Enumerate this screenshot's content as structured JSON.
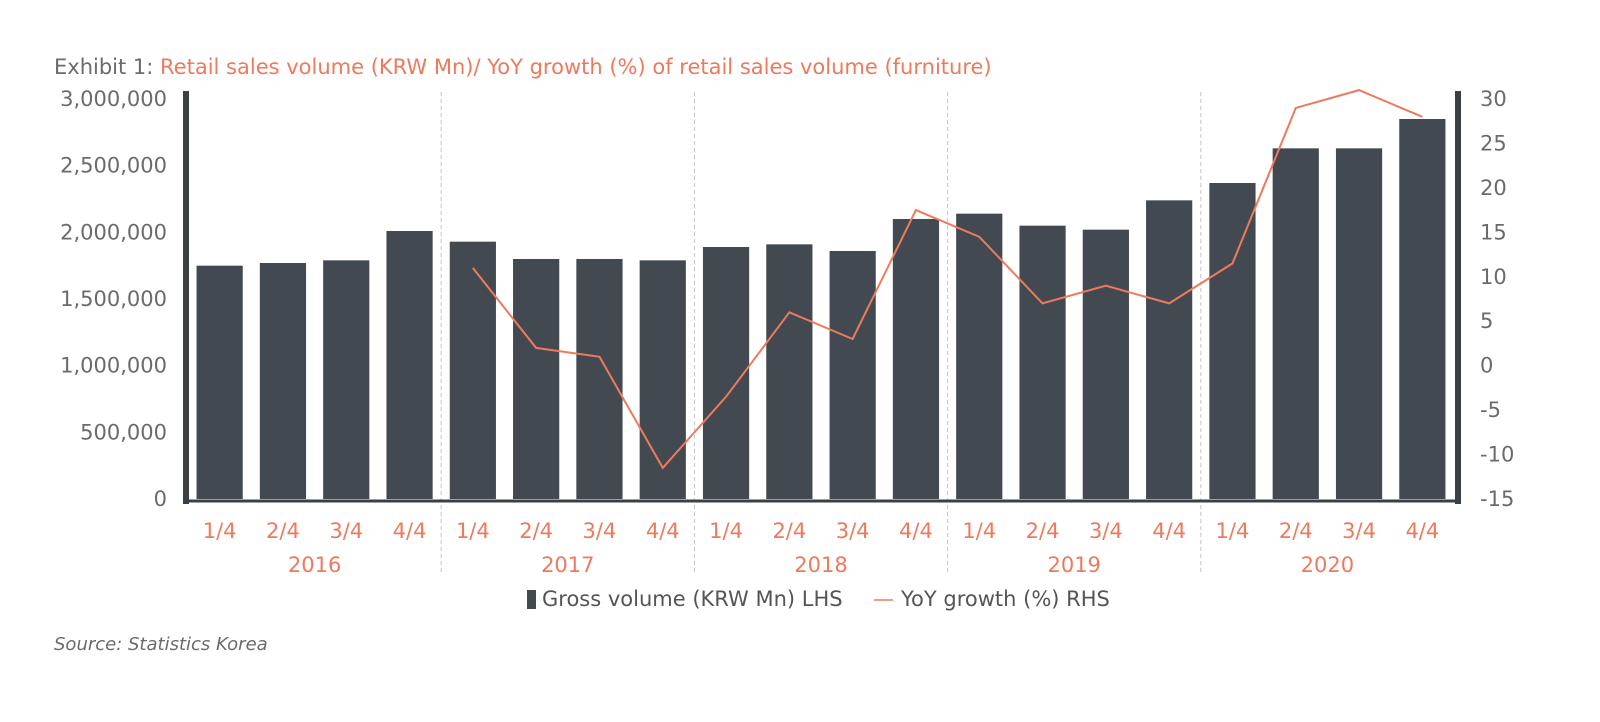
{
  "title": {
    "prefix": "Exhibit 1: ",
    "main": "Retail sales volume (KRW Mn)/ YoY growth (%) of retail sales volume (furniture)"
  },
  "source": "Source: Statistics Korea",
  "colors": {
    "bar": "#434950",
    "line": "#ee7a5d",
    "axis": "#3a4046",
    "prefix": "#6b6b6b",
    "accent_text": "#ee7a5d",
    "divider": "#c4c4c4"
  },
  "chart_data": {
    "type": "bar",
    "categories": [
      "1/4",
      "2/4",
      "3/4",
      "4/4",
      "1/4",
      "2/4",
      "3/4",
      "4/4",
      "1/4",
      "2/4",
      "3/4",
      "4/4",
      "1/4",
      "2/4",
      "3/4",
      "4/4",
      "1/4",
      "2/4",
      "3/4",
      "4/4"
    ],
    "groups": [
      {
        "label": "2016",
        "size": 4
      },
      {
        "label": "2017",
        "size": 4
      },
      {
        "label": "2018",
        "size": 4
      },
      {
        "label": "2019",
        "size": 4
      },
      {
        "label": "2020",
        "size": 4
      }
    ],
    "series": [
      {
        "name": "Gross volume (KRW Mn) LHS",
        "type": "bar",
        "axis": "left",
        "values": [
          1750000,
          1770000,
          1790000,
          2010000,
          1930000,
          1800000,
          1800000,
          1790000,
          1890000,
          1910000,
          1860000,
          2100000,
          2140000,
          2050000,
          2020000,
          2240000,
          2370000,
          2630000,
          2630000,
          2850000
        ]
      },
      {
        "name": "YoY growth (%) RHS",
        "type": "line",
        "axis": "right",
        "values": [
          null,
          null,
          null,
          null,
          11,
          2,
          1,
          -11.5,
          -3.5,
          6,
          3,
          17.5,
          14.5,
          7,
          9,
          7,
          11.5,
          29,
          31,
          28
        ]
      }
    ],
    "y_left": {
      "min": 0,
      "max": 3000000,
      "ticks": [
        "0",
        "500,000",
        "1,000,000",
        "1,500,000",
        "2,000,000",
        "2,500,000",
        "3,000,000"
      ]
    },
    "y_right": {
      "min": -15,
      "max": 30,
      "ticks": [
        "-15",
        "-10",
        "-5",
        "0",
        "5",
        "10",
        "15",
        "20",
        "25",
        "30"
      ]
    },
    "legend_position": "bottom-center",
    "grid": false
  }
}
